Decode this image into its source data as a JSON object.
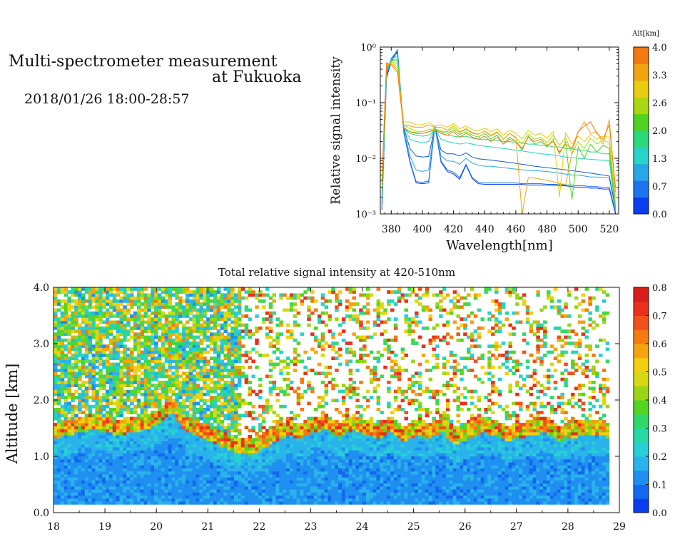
{
  "header": {
    "title_line1": "Multi-spectrometer measurement",
    "title_line2": "at Fukuoka",
    "datetime": "2018/01/26 18:00-28:57"
  },
  "chart_data": [
    {
      "type": "line",
      "title": "",
      "xlabel": "Wavelength[nm]",
      "ylabel": "Relative signal intensity",
      "xlim": [
        373,
        526
      ],
      "ylim": [
        0.001,
        1
      ],
      "y_scale": "log",
      "x_ticks": [
        380,
        400,
        420,
        440,
        460,
        480,
        500,
        520
      ],
      "y_ticks": [
        {
          "value": 1,
          "label": "10⁰"
        },
        {
          "value": 0.1,
          "label": "10⁻¹"
        },
        {
          "value": 0.01,
          "label": "10⁻²"
        },
        {
          "value": 0.001,
          "label": "10⁻³"
        }
      ],
      "legend": {
        "title": "Alt[km]",
        "ticks": [
          "0.0",
          "0.7",
          "1.3",
          "2.0",
          "2.6",
          "3.3",
          "4.0"
        ],
        "colors": [
          "#0a3df0",
          "#1d74ee",
          "#27a7e6",
          "#26d4c8",
          "#2cd87c",
          "#4ed320",
          "#a9d812",
          "#e8cc10",
          "#f0a50e",
          "#f27a10"
        ]
      },
      "x": [
        374,
        377,
        380,
        384,
        388,
        392,
        396,
        400,
        404,
        408,
        412,
        416,
        420,
        424,
        428,
        432,
        436,
        440,
        444,
        448,
        452,
        456,
        460,
        464,
        468,
        472,
        476,
        480,
        484,
        488,
        492,
        496,
        500,
        504,
        508,
        512,
        516,
        520,
        524
      ],
      "series": [
        {
          "altitude": 0.0,
          "color": "#0a3df0",
          "values": [
            0.0012,
            0.28,
            0.55,
            0.85,
            0.03,
            0.0085,
            0.0036,
            0.0035,
            0.0036,
            0.038,
            0.0085,
            0.0058,
            0.0052,
            0.0042,
            0.0075,
            0.0043,
            0.0035,
            0.0034,
            0.0034,
            0.0034,
            0.0034,
            0.0034,
            0.0034,
            0.0034,
            0.0033,
            0.0033,
            0.0033,
            0.0033,
            0.0033,
            0.0032,
            0.0032,
            0.0031,
            0.003,
            0.003,
            0.0029,
            0.0029,
            0.0028,
            0.0028,
            0.001
          ]
        },
        {
          "altitude": 0.4,
          "color": "#1d74ee",
          "values": [
            0.0012,
            0.3,
            0.6,
            0.9,
            0.032,
            0.009,
            0.0038,
            0.0037,
            0.0039,
            0.039,
            0.009,
            0.0062,
            0.0056,
            0.0045,
            0.0078,
            0.0045,
            0.0037,
            0.0036,
            0.0036,
            0.0036,
            0.0036,
            0.0036,
            0.0036,
            0.0035,
            0.0035,
            0.0035,
            0.0035,
            0.0034,
            0.0034,
            0.0034,
            0.0033,
            0.0033,
            0.0032,
            0.0032,
            0.0031,
            0.0031,
            0.003,
            0.003,
            0.0011
          ]
        },
        {
          "altitude": 0.9,
          "color": "#27a7e6",
          "values": [
            0.0013,
            0.32,
            0.62,
            0.88,
            0.033,
            0.011,
            0.0062,
            0.0058,
            0.0062,
            0.037,
            0.011,
            0.009,
            0.0088,
            0.0078,
            0.01,
            0.0082,
            0.0075,
            0.0072,
            0.0072,
            0.007,
            0.0068,
            0.0066,
            0.0064,
            0.0062,
            0.0061,
            0.006,
            0.0059,
            0.0058,
            0.0056,
            0.0054,
            0.0052,
            0.005,
            0.005,
            0.0048,
            0.0046,
            0.0046,
            0.0045,
            0.0044,
            0.0012
          ]
        },
        {
          "altitude": 1.3,
          "color": "#1a57c8",
          "values": [
            0.0015,
            0.34,
            0.62,
            0.8,
            0.036,
            0.015,
            0.011,
            0.0105,
            0.0108,
            0.036,
            0.014,
            0.012,
            0.012,
            0.011,
            0.0125,
            0.0105,
            0.0098,
            0.0095,
            0.0093,
            0.009,
            0.0087,
            0.0084,
            0.0081,
            0.0078,
            0.0075,
            0.0072,
            0.007,
            0.0068,
            0.0066,
            0.0064,
            0.0062,
            0.006,
            0.0058,
            0.0056,
            0.0054,
            0.0052,
            0.005,
            0.0048,
            0.0013
          ]
        },
        {
          "altitude": 1.6,
          "color": "#26d4c8",
          "values": [
            0.0018,
            0.36,
            0.6,
            0.7,
            0.038,
            0.022,
            0.02,
            0.019,
            0.02,
            0.034,
            0.022,
            0.02,
            0.019,
            0.018,
            0.019,
            0.018,
            0.017,
            0.0165,
            0.016,
            0.0155,
            0.015,
            0.0145,
            0.014,
            0.0135,
            0.013,
            0.0125,
            0.012,
            0.0118,
            0.0115,
            0.011,
            0.0105,
            0.0102,
            0.01,
            0.0098,
            0.0096,
            0.0094,
            0.0092,
            0.009,
            0.0012
          ]
        },
        {
          "altitude": 2.0,
          "color": "#2cd87c",
          "values": [
            0.002,
            0.4,
            0.58,
            0.62,
            0.035,
            0.028,
            0.026,
            0.025,
            0.026,
            0.032,
            0.028,
            0.026,
            0.025,
            0.024,
            0.025,
            0.023,
            0.022,
            0.022,
            0.021,
            0.021,
            0.02,
            0.02,
            0.019,
            0.019,
            0.018,
            0.018,
            0.017,
            0.017,
            0.016,
            0.016,
            0.015,
            0.015,
            0.014,
            0.014,
            0.013,
            0.013,
            0.012,
            0.012,
            0.0012
          ]
        },
        {
          "altitude": 2.4,
          "color": "#4ed320",
          "values": [
            0.0022,
            0.42,
            0.56,
            0.58,
            0.036,
            0.03,
            0.029,
            0.028,
            0.03,
            0.033,
            0.03,
            0.028,
            0.032,
            0.027,
            0.03,
            0.026,
            0.024,
            0.028,
            0.022,
            0.026,
            0.018,
            0.024,
            0.02,
            0.014,
            0.025,
            0.018,
            0.02,
            0.016,
            0.022,
            0.012,
            0.02,
            0.0018,
            0.016,
            0.01,
            0.018,
            0.013,
            0.017,
            0.015,
            0.0013
          ]
        },
        {
          "altitude": 2.8,
          "color": "#a9d812",
          "values": [
            0.0025,
            0.45,
            0.55,
            0.5,
            0.04,
            0.034,
            0.031,
            0.03,
            0.033,
            0.034,
            0.031,
            0.03,
            0.035,
            0.029,
            0.033,
            0.028,
            0.027,
            0.031,
            0.025,
            0.029,
            0.022,
            0.028,
            0.023,
            0.018,
            0.027,
            0.022,
            0.024,
            0.019,
            0.026,
            0.017,
            0.024,
            0.012,
            0.02,
            0.015,
            0.023,
            0.018,
            0.021,
            0.019,
            0.0015
          ]
        },
        {
          "altitude": 3.2,
          "color": "#e8cc10",
          "values": [
            0.003,
            0.48,
            0.52,
            0.45,
            0.045,
            0.045,
            0.04,
            0.04,
            0.044,
            0.038,
            0.04,
            0.036,
            0.042,
            0.034,
            0.038,
            0.033,
            0.031,
            0.035,
            0.03,
            0.034,
            0.026,
            0.032,
            0.028,
            0.022,
            0.032,
            0.026,
            0.028,
            0.023,
            0.03,
            0.002,
            0.029,
            0.018,
            0.025,
            0.02,
            0.027,
            0.022,
            0.025,
            0.024,
            0.002
          ]
        },
        {
          "altitude": 3.6,
          "color": "#f0a50e",
          "values": [
            0.0035,
            0.5,
            0.5,
            0.4,
            0.04,
            0.038,
            0.036,
            0.036,
            0.04,
            0.036,
            0.036,
            0.032,
            0.038,
            0.03,
            0.034,
            0.029,
            0.027,
            0.031,
            0.026,
            0.03,
            0.022,
            0.028,
            0.024,
            0.0009,
            0.0045,
            0.0044,
            0.0042,
            0.004,
            0.0038,
            0.0035,
            0.0034,
            0.012,
            0.03,
            0.045,
            0.028,
            0.03,
            0.018,
            0.05,
            0.0025
          ]
        },
        {
          "altitude": 4.0,
          "color": "#f27a10",
          "values": [
            0.004,
            0.52,
            0.48,
            0.35,
            0.035,
            0.03,
            0.028,
            0.028,
            0.03,
            0.032,
            0.028,
            0.026,
            0.03,
            0.024,
            0.028,
            0.024,
            0.022,
            0.025,
            0.02,
            0.024,
            0.018,
            0.022,
            0.02,
            0.015,
            0.024,
            0.02,
            0.022,
            0.017,
            0.02,
            0.013,
            0.018,
            0.015,
            0.03,
            0.038,
            0.045,
            0.028,
            0.022,
            0.04,
            0.003
          ]
        }
      ]
    },
    {
      "type": "heatmap",
      "title": "Total relative signal intensity at 420-510nm",
      "xlabel": "",
      "ylabel": "Altitude [km]",
      "xlim": [
        18,
        29
      ],
      "ylim": [
        0.0,
        4.0
      ],
      "x_ticks": [
        "18",
        "19",
        "20",
        "21",
        "22",
        "23",
        "24",
        "25",
        "26",
        "27",
        "28",
        "29"
      ],
      "y_ticks": [
        "0.0",
        "1.0",
        "2.0",
        "3.0",
        "4.0"
      ],
      "x_data_range": [
        18.0,
        28.8
      ],
      "y_data_range": [
        0.15,
        4.0
      ],
      "colorbar": {
        "range": [
          0.0,
          0.8
        ],
        "ticks": [
          "0.0",
          "0.1",
          "0.2",
          "0.3",
          "0.4",
          "0.5",
          "0.6",
          "0.7",
          "0.8"
        ],
        "colors": [
          "#0a3df0",
          "#1268ee",
          "#1f8ff0",
          "#2ab3ea",
          "#27cfd6",
          "#26d8a4",
          "#30d86a",
          "#55d422",
          "#9ad514",
          "#d6d912",
          "#f4cf10",
          "#f5a40f",
          "#f57a10",
          "#f2501a",
          "#e8301a",
          "#d81e1a"
        ]
      },
      "description_values": {
        "boundary_layer_top_km": [
          1.45,
          1.5,
          1.55,
          1.6,
          1.55,
          1.5,
          1.55,
          1.6,
          1.7,
          1.9,
          1.6,
          1.5,
          1.4,
          1.3,
          1.2,
          1.15,
          1.25,
          1.4,
          1.5,
          1.45,
          1.55,
          1.6,
          1.45,
          1.6,
          1.5,
          1.45,
          1.55,
          1.4,
          1.5,
          1.45,
          1.55,
          1.35,
          1.45,
          1.55,
          1.5,
          1.4,
          1.45,
          1.5,
          1.55,
          1.4,
          1.45,
          1.5,
          1.5,
          1.45
        ],
        "boundary_layer_intensity": 0.15,
        "cloud_region_intensity": 0.35
      }
    }
  ]
}
